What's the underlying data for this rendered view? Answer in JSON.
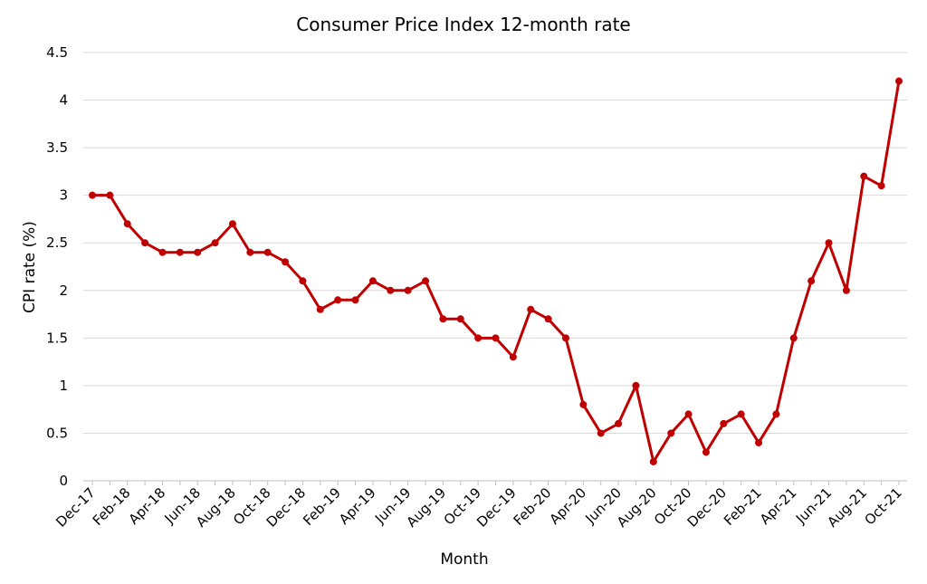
{
  "chart_data": {
    "type": "line",
    "title": "Consumer Price Index 12-month rate",
    "xlabel": "Month",
    "ylabel": "CPI rate (%)",
    "ylim": [
      0,
      4.5
    ],
    "yticks": [
      "0",
      "0.5",
      "1",
      "1.5",
      "2",
      "2.5",
      "3",
      "3.5",
      "4",
      "4.5"
    ],
    "grid": true,
    "legend": "none",
    "color": "#c00000",
    "x": [
      "Dec-17",
      "Jan-18",
      "Feb-18",
      "Mar-18",
      "Apr-18",
      "May-18",
      "Jun-18",
      "Jul-18",
      "Aug-18",
      "Sep-18",
      "Oct-18",
      "Nov-18",
      "Dec-18",
      "Jan-19",
      "Feb-19",
      "Mar-19",
      "Apr-19",
      "May-19",
      "Jun-19",
      "Jul-19",
      "Aug-19",
      "Sep-19",
      "Oct-19",
      "Nov-19",
      "Dec-19",
      "Jan-20",
      "Feb-20",
      "Mar-20",
      "Apr-20",
      "May-20",
      "Jun-20",
      "Jul-20",
      "Aug-20",
      "Sep-20",
      "Oct-20",
      "Nov-20",
      "Dec-20",
      "Jan-21",
      "Feb-21",
      "Mar-21",
      "Apr-21",
      "May-21",
      "Jun-21",
      "Jul-21",
      "Aug-21",
      "Sep-21",
      "Oct-21"
    ],
    "xtick_labels": [
      "Dec-17",
      "Feb-18",
      "Apr-18",
      "Jun-18",
      "Aug-18",
      "Oct-18",
      "Dec-18",
      "Feb-19",
      "Apr-19",
      "Jun-19",
      "Aug-19",
      "Oct-19",
      "Dec-19",
      "Feb-20",
      "Apr-20",
      "Jun-20",
      "Aug-20",
      "Oct-20",
      "Dec-20",
      "Feb-21",
      "Apr-21",
      "Jun-21",
      "Aug-21",
      "Oct-21"
    ],
    "series": [
      {
        "values": [
          3.0,
          3.0,
          2.7,
          2.5,
          2.4,
          2.4,
          2.4,
          2.5,
          2.7,
          2.4,
          2.4,
          2.3,
          2.1,
          1.8,
          1.9,
          1.9,
          2.1,
          2.0,
          2.0,
          2.1,
          1.7,
          1.7,
          1.5,
          1.5,
          1.3,
          1.8,
          1.7,
          1.5,
          0.8,
          0.5,
          0.6,
          1.0,
          0.2,
          0.5,
          0.7,
          0.3,
          0.6,
          0.7,
          0.4,
          0.7,
          1.5,
          2.1,
          2.5,
          2.0,
          3.2,
          3.1,
          4.2
        ]
      }
    ]
  }
}
